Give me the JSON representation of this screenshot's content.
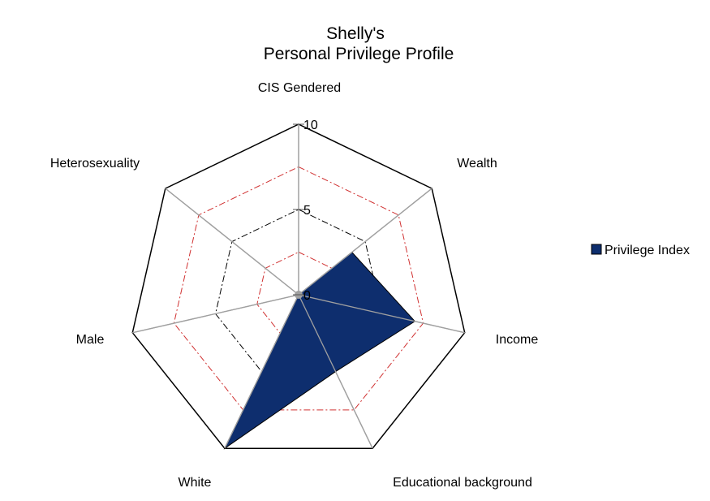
{
  "chart_data": {
    "type": "radar",
    "title_lines": [
      "Shelly's",
      "Personal Privilege Profile"
    ],
    "axes": [
      "CIS Gendered",
      "Wealth",
      "Income",
      "Educational background",
      "White",
      "Male",
      "Heterosexuality"
    ],
    "rlim": [
      0,
      10
    ],
    "ticks": [
      "0",
      "5",
      "10"
    ],
    "tick_values": [
      0,
      5,
      10
    ],
    "series": [
      {
        "name": "Privilege Index",
        "values": [
          0,
          4,
          7,
          5,
          10,
          0,
          0
        ]
      }
    ],
    "legend_position": "right",
    "colors": {
      "series_fill": "#0e2e6e",
      "series_stroke": "#000000",
      "outer_frame": "#000000",
      "spokes": "#a0a0a0",
      "grid_black_dash": "#000000",
      "grid_red_dash": "#d03030"
    }
  }
}
